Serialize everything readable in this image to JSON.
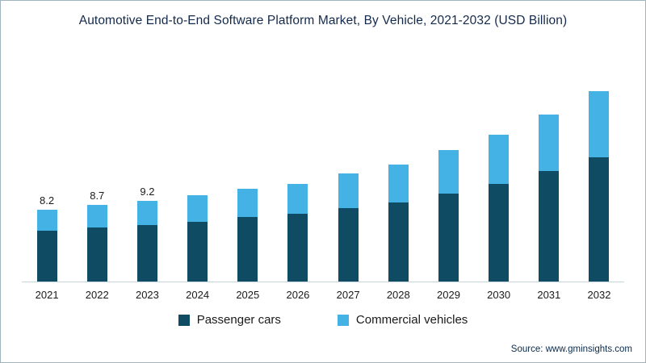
{
  "title": "Automotive End-to-End Software Platform Market, By Vehicle, 2021-2032 (USD Billion)",
  "source": {
    "label": "Source:",
    "value": "www.gminsights.com"
  },
  "legend": [
    {
      "label": "Passenger cars",
      "color": "#0f4c63"
    },
    {
      "label": "Commercial vehicles",
      "color": "#45b2e6"
    }
  ],
  "chart_data": {
    "type": "bar",
    "stacked": true,
    "title": "Automotive End-to-End Software Platform Market, By Vehicle, 2021-2032 (USD Billion)",
    "xlabel": "",
    "ylabel": "USD Billion",
    "ylim": [
      0,
      22
    ],
    "grid": false,
    "legend_position": "bottom",
    "categories": [
      "2021",
      "2022",
      "2023",
      "2024",
      "2025",
      "2026",
      "2027",
      "2028",
      "2029",
      "2030",
      "2031",
      "2032"
    ],
    "series": [
      {
        "name": "Passenger cars",
        "color": "#0f4c63",
        "values": [
          5.8,
          6.2,
          6.4,
          6.8,
          7.4,
          7.7,
          8.4,
          9.0,
          10.0,
          11.1,
          12.6,
          14.2
        ]
      },
      {
        "name": "Commercial vehicles",
        "color": "#45b2e6",
        "values": [
          2.4,
          2.5,
          2.8,
          3.0,
          3.2,
          3.4,
          3.9,
          4.3,
          5.0,
          5.6,
          6.4,
          7.5
        ]
      }
    ],
    "totals": [
      8.2,
      8.7,
      9.2,
      9.8,
      10.6,
      11.1,
      12.3,
      13.3,
      15.0,
      16.7,
      19.0,
      21.7
    ],
    "total_labels": [
      "8.2",
      "8.7",
      "9.2",
      "",
      "",
      "",
      "",
      "",
      "",
      "",
      "",
      ""
    ]
  }
}
